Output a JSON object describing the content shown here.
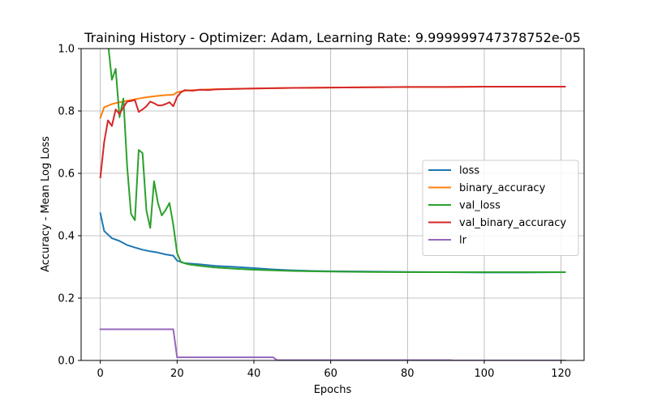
{
  "chart_data": {
    "type": "line",
    "title": "Training History - Optimizer: Adam, Learning Rate: 9.999999747378752e-05",
    "xlabel": "Epochs",
    "ylabel": "Accuracy - Mean Log Loss",
    "xlim": [
      -5,
      126
    ],
    "ylim": [
      0,
      1
    ],
    "xticks": [
      0,
      20,
      40,
      60,
      80,
      100,
      120
    ],
    "yticks": [
      0.0,
      0.2,
      0.4,
      0.6,
      0.8,
      1.0
    ],
    "xtick_labels": [
      "0",
      "20",
      "40",
      "60",
      "80",
      "100",
      "120"
    ],
    "ytick_labels": [
      "0.0",
      "0.2",
      "0.4",
      "0.6",
      "0.8",
      "1.0"
    ],
    "grid": true,
    "legend_position": "center-right",
    "series": [
      {
        "name": "loss",
        "color": "#1f77b4",
        "points": [
          [
            0,
            0.472
          ],
          [
            1,
            0.415
          ],
          [
            3,
            0.392
          ],
          [
            5,
            0.383
          ],
          [
            7,
            0.37
          ],
          [
            9,
            0.362
          ],
          [
            11,
            0.355
          ],
          [
            13,
            0.35
          ],
          [
            15,
            0.346
          ],
          [
            17,
            0.34
          ],
          [
            19,
            0.336
          ],
          [
            20,
            0.32
          ],
          [
            22,
            0.312
          ],
          [
            26,
            0.308
          ],
          [
            30,
            0.303
          ],
          [
            35,
            0.3
          ],
          [
            40,
            0.296
          ],
          [
            45,
            0.292
          ],
          [
            50,
            0.289
          ],
          [
            55,
            0.287
          ],
          [
            60,
            0.286
          ],
          [
            70,
            0.285
          ],
          [
            80,
            0.284
          ],
          [
            90,
            0.283
          ],
          [
            100,
            0.282
          ],
          [
            110,
            0.282
          ],
          [
            121,
            0.283
          ]
        ]
      },
      {
        "name": "binary_accuracy",
        "color": "#ff7f0e",
        "points": [
          [
            0,
            0.778
          ],
          [
            1,
            0.812
          ],
          [
            3,
            0.822
          ],
          [
            5,
            0.828
          ],
          [
            8,
            0.835
          ],
          [
            11,
            0.842
          ],
          [
            14,
            0.847
          ],
          [
            17,
            0.851
          ],
          [
            19,
            0.852
          ],
          [
            20,
            0.86
          ],
          [
            22,
            0.865
          ],
          [
            26,
            0.868
          ],
          [
            30,
            0.87
          ],
          [
            40,
            0.872
          ],
          [
            50,
            0.874
          ],
          [
            60,
            0.875
          ],
          [
            70,
            0.876
          ],
          [
            80,
            0.877
          ],
          [
            90,
            0.877
          ],
          [
            100,
            0.878
          ],
          [
            110,
            0.878
          ],
          [
            121,
            0.878
          ]
        ]
      },
      {
        "name": "val_loss",
        "color": "#2ca02c",
        "points": [
          [
            2,
            1.02
          ],
          [
            3,
            0.9
          ],
          [
            4,
            0.935
          ],
          [
            5,
            0.78
          ],
          [
            6,
            0.84
          ],
          [
            7,
            0.62
          ],
          [
            8,
            0.47
          ],
          [
            9,
            0.45
          ],
          [
            10,
            0.675
          ],
          [
            11,
            0.665
          ],
          [
            12,
            0.48
          ],
          [
            13,
            0.425
          ],
          [
            14,
            0.575
          ],
          [
            15,
            0.505
          ],
          [
            16,
            0.465
          ],
          [
            17,
            0.482
          ],
          [
            18,
            0.505
          ],
          [
            19,
            0.435
          ],
          [
            20,
            0.345
          ],
          [
            21,
            0.315
          ],
          [
            23,
            0.308
          ],
          [
            26,
            0.303
          ],
          [
            30,
            0.298
          ],
          [
            35,
            0.294
          ],
          [
            40,
            0.291
          ],
          [
            45,
            0.289
          ],
          [
            50,
            0.287
          ],
          [
            60,
            0.285
          ],
          [
            70,
            0.284
          ],
          [
            80,
            0.283
          ],
          [
            90,
            0.283
          ],
          [
            100,
            0.283
          ],
          [
            110,
            0.283
          ],
          [
            121,
            0.283
          ]
        ]
      },
      {
        "name": "val_binary_accuracy",
        "color": "#d62728",
        "points": [
          [
            0,
            0.587
          ],
          [
            1,
            0.7
          ],
          [
            2,
            0.77
          ],
          [
            3,
            0.752
          ],
          [
            4,
            0.805
          ],
          [
            5,
            0.79
          ],
          [
            6,
            0.812
          ],
          [
            7,
            0.83
          ],
          [
            8,
            0.832
          ],
          [
            9,
            0.835
          ],
          [
            10,
            0.797
          ],
          [
            11,
            0.805
          ],
          [
            12,
            0.815
          ],
          [
            13,
            0.83
          ],
          [
            14,
            0.825
          ],
          [
            15,
            0.818
          ],
          [
            16,
            0.818
          ],
          [
            17,
            0.822
          ],
          [
            18,
            0.828
          ],
          [
            19,
            0.815
          ],
          [
            20,
            0.845
          ],
          [
            21,
            0.86
          ],
          [
            22,
            0.867
          ],
          [
            24,
            0.865
          ],
          [
            26,
            0.868
          ],
          [
            28,
            0.867
          ],
          [
            30,
            0.869
          ],
          [
            35,
            0.871
          ],
          [
            40,
            0.872
          ],
          [
            45,
            0.873
          ],
          [
            50,
            0.874
          ],
          [
            60,
            0.875
          ],
          [
            70,
            0.876
          ],
          [
            80,
            0.877
          ],
          [
            90,
            0.877
          ],
          [
            100,
            0.878
          ],
          [
            110,
            0.878
          ],
          [
            121,
            0.878
          ]
        ]
      },
      {
        "name": "lr",
        "color": "#9467bd",
        "points": [
          [
            0,
            0.1
          ],
          [
            19,
            0.1
          ],
          [
            20,
            0.01
          ],
          [
            45,
            0.01
          ],
          [
            46,
            0.001
          ],
          [
            91,
            0.001
          ],
          [
            92,
            0.0001
          ],
          [
            121,
            0.0001
          ]
        ]
      }
    ]
  }
}
